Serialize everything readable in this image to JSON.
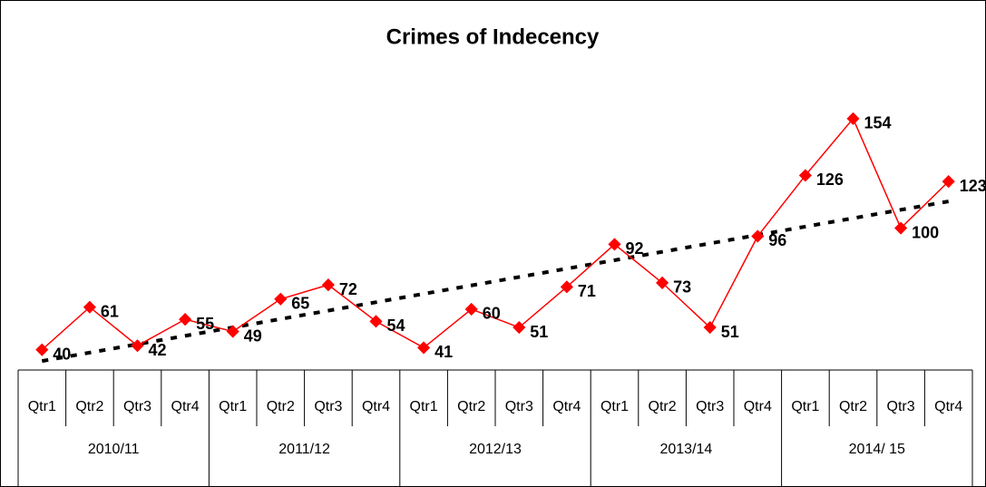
{
  "chart_data": {
    "type": "line",
    "title": "Crimes of Indecency",
    "categories": [
      "Qtr1",
      "Qtr2",
      "Qtr3",
      "Qtr4",
      "Qtr1",
      "Qtr2",
      "Qtr3",
      "Qtr4",
      "Qtr1",
      "Qtr2",
      "Qtr3",
      "Qtr4",
      "Qtr1",
      "Qtr2",
      "Qtr3",
      "Qtr4",
      "Qtr1",
      "Qtr2",
      "Qtr3",
      "Qtr4"
    ],
    "group_labels": [
      "2010/11",
      "2011/12",
      "2012/13",
      "2013/14",
      "2014/ 15"
    ],
    "values": [
      40,
      61,
      42,
      55,
      49,
      65,
      72,
      54,
      41,
      60,
      51,
      71,
      92,
      73,
      51,
      96,
      126,
      154,
      100,
      123
    ],
    "color": "#ff0000",
    "trendline": true,
    "trend_color": "#000000",
    "ylim": [
      30,
      200
    ]
  }
}
